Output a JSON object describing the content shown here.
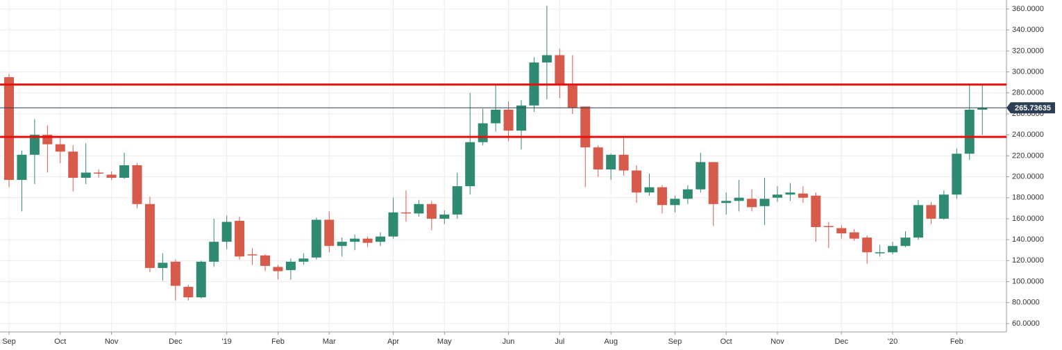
{
  "chart_data": {
    "type": "candlestick",
    "categories": [
      "Sep",
      null,
      null,
      null,
      "Oct",
      null,
      null,
      null,
      "Nov",
      null,
      null,
      null,
      null,
      "Dec",
      null,
      null,
      null,
      "'19",
      null,
      null,
      null,
      "Feb",
      null,
      null,
      null,
      "Mar",
      null,
      null,
      null,
      null,
      "Apr",
      null,
      null,
      null,
      "May",
      null,
      null,
      null,
      null,
      "Jun",
      null,
      null,
      null,
      "Jul",
      null,
      null,
      null,
      "Aug",
      null,
      null,
      null,
      null,
      "Sep",
      null,
      null,
      null,
      "Oct",
      null,
      null,
      null,
      "Nov",
      null,
      null,
      null,
      null,
      "Dec",
      null,
      null,
      null,
      "'20",
      null,
      null,
      null,
      null,
      "Feb",
      null,
      null
    ],
    "open": [
      295,
      197,
      221,
      240,
      231,
      224,
      199,
      204,
      202,
      199,
      211,
      174,
      113,
      119,
      95,
      85,
      119,
      138,
      158,
      126,
      125,
      114,
      111,
      119,
      123,
      159,
      134,
      138,
      141,
      138,
      143,
      166,
      165,
      174,
      160,
      164,
      191,
      233,
      251,
      264,
      244,
      268,
      309,
      316,
      287,
      267,
      228,
      207,
      221,
      206,
      185,
      190,
      173,
      179,
      188,
      214,
      175,
      177,
      179,
      172,
      180,
      183,
      184,
      182,
      153,
      151,
      147,
      142,
      127,
      128,
      134,
      142,
      173,
      160,
      183,
      222,
      264
    ],
    "high": [
      298,
      225,
      255,
      249,
      238,
      230,
      232,
      207,
      205,
      223,
      213,
      181,
      127,
      121,
      97,
      120,
      160,
      163,
      162,
      132,
      126,
      116,
      122,
      127,
      161,
      167,
      142,
      145,
      143,
      147,
      180,
      187,
      178,
      177,
      168,
      204,
      280,
      265,
      288,
      272,
      273,
      314,
      363,
      322,
      316,
      267,
      230,
      222,
      239,
      211,
      203,
      192,
      182,
      192,
      223,
      214,
      185,
      197,
      188,
      199,
      191,
      194,
      191,
      185,
      157,
      154,
      150,
      144,
      135,
      138,
      148,
      178,
      176,
      187,
      227,
      288,
      288
    ],
    "low": [
      190,
      167,
      193,
      204,
      213,
      186,
      193,
      199,
      197,
      198,
      170,
      109,
      101,
      82,
      82,
      84,
      114,
      131,
      121,
      116,
      110,
      102,
      102,
      116,
      121,
      128,
      124,
      130,
      133,
      134,
      141,
      157,
      162,
      149,
      155,
      160,
      183,
      230,
      243,
      234,
      226,
      262,
      274,
      275,
      260,
      190,
      200,
      197,
      201,
      175,
      182,
      165,
      166,
      174,
      185,
      153,
      164,
      167,
      167,
      154,
      176,
      177,
      175,
      138,
      132,
      141,
      139,
      117,
      124,
      126,
      133,
      140,
      155,
      159,
      179,
      216,
      240
    ],
    "close": [
      197,
      221,
      240,
      231,
      224,
      199,
      204,
      203,
      199,
      211,
      174,
      113,
      118,
      96,
      85,
      119,
      138,
      157,
      124,
      125,
      115,
      110,
      119,
      122,
      159,
      134,
      138,
      141,
      137,
      143,
      166,
      165,
      174,
      160,
      164,
      191,
      233,
      251,
      264,
      244,
      268,
      309,
      316,
      288,
      266,
      228,
      207,
      221,
      206,
      185,
      190,
      173,
      179,
      188,
      214,
      174,
      177,
      180,
      171,
      179,
      183,
      185,
      180,
      152,
      152,
      146,
      141,
      128,
      128,
      134,
      142,
      173,
      160,
      183,
      222,
      264,
      265.73635
    ],
    "up_color": "#2f8a72",
    "down_color": "#d65b4a",
    "ylim": [
      52,
      368.6
    ],
    "yticks": [
      {
        "value": 60,
        "label": "60.0000"
      },
      {
        "value": 80,
        "label": "80.0000"
      },
      {
        "value": 100,
        "label": "100.0000"
      },
      {
        "value": 120,
        "label": "120.0000"
      },
      {
        "value": 140,
        "label": "140.0000"
      },
      {
        "value": 160,
        "label": "160.0000"
      },
      {
        "value": 180,
        "label": "180.0000"
      },
      {
        "value": 200,
        "label": "200.0000"
      },
      {
        "value": 220,
        "label": "220.0000"
      },
      {
        "value": 240,
        "label": "240.0000"
      },
      {
        "value": 260,
        "label": "260.0000"
      },
      {
        "value": 280,
        "label": "280.0000"
      },
      {
        "value": 300,
        "label": "300.0000"
      },
      {
        "value": 320,
        "label": "320.0000"
      },
      {
        "value": 340,
        "label": "340.0000"
      },
      {
        "value": 360,
        "label": "360.0000"
      }
    ],
    "grid": true,
    "hlines": [
      {
        "value": 288,
        "color": "#e5100e"
      },
      {
        "value": 238,
        "color": "#e5100e"
      }
    ],
    "last_price": 265.73635,
    "last_price_color": "#2b3f55"
  }
}
